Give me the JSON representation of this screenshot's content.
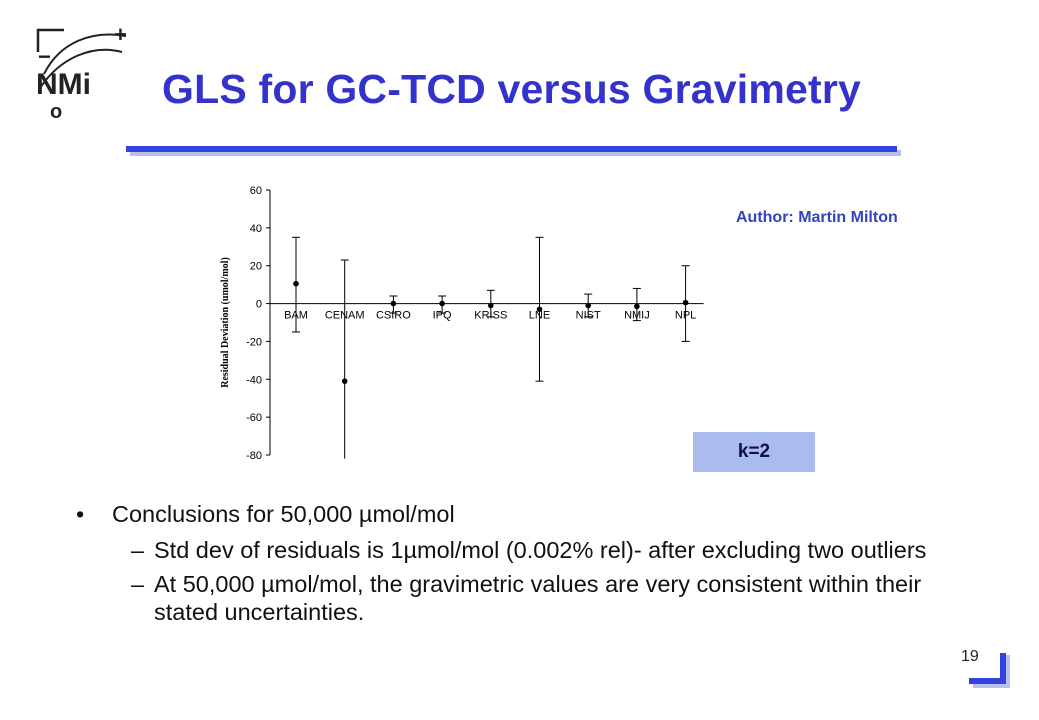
{
  "logo": {
    "text": "NMi",
    "plus": "+",
    "minus": "−",
    "circle": "o"
  },
  "title": "GLS for GC-TCD versus Gravimetry",
  "author": "Author: Martin Milton",
  "k_label": "k=2",
  "conclusions": {
    "bullet": "•",
    "dash": "–",
    "heading": "Conclusions for 50,000 µmol/mol",
    "items": [
      "Std dev of residuals is 1µmol/mol (0.002% rel)- after excluding two outliers",
      "At 50,000 µmol/mol, the gravimetric values are very consistent within their stated uncertainties."
    ]
  },
  "page_number": "19",
  "chart_data": {
    "type": "scatter",
    "error_bars": true,
    "categories": [
      "BAM",
      "CENAM",
      "CSIRO",
      "IPQ",
      "KRISS",
      "LNE",
      "NIST",
      "NMIJ",
      "NPL"
    ],
    "values": [
      10.5,
      -41,
      0,
      0,
      -1,
      -3,
      -1,
      -1.5,
      0.5
    ],
    "error_low": [
      -15,
      -82,
      -5,
      -5,
      -7,
      -41,
      -7,
      -9,
      -20
    ],
    "error_high": [
      35,
      23,
      4,
      4,
      7,
      35,
      5,
      8,
      20
    ],
    "ylabel": "Residual Deviation (umol/mol)",
    "ylim": [
      -80,
      60
    ],
    "yticks": [
      60,
      40,
      20,
      0,
      -20,
      -40,
      -60,
      -80
    ],
    "grid": false,
    "colors": {
      "marker": "#000000",
      "axis": "#000000"
    }
  },
  "colors": {
    "title": "#3333cc",
    "accent": "#3344dd",
    "k_box": "#aabbee"
  }
}
